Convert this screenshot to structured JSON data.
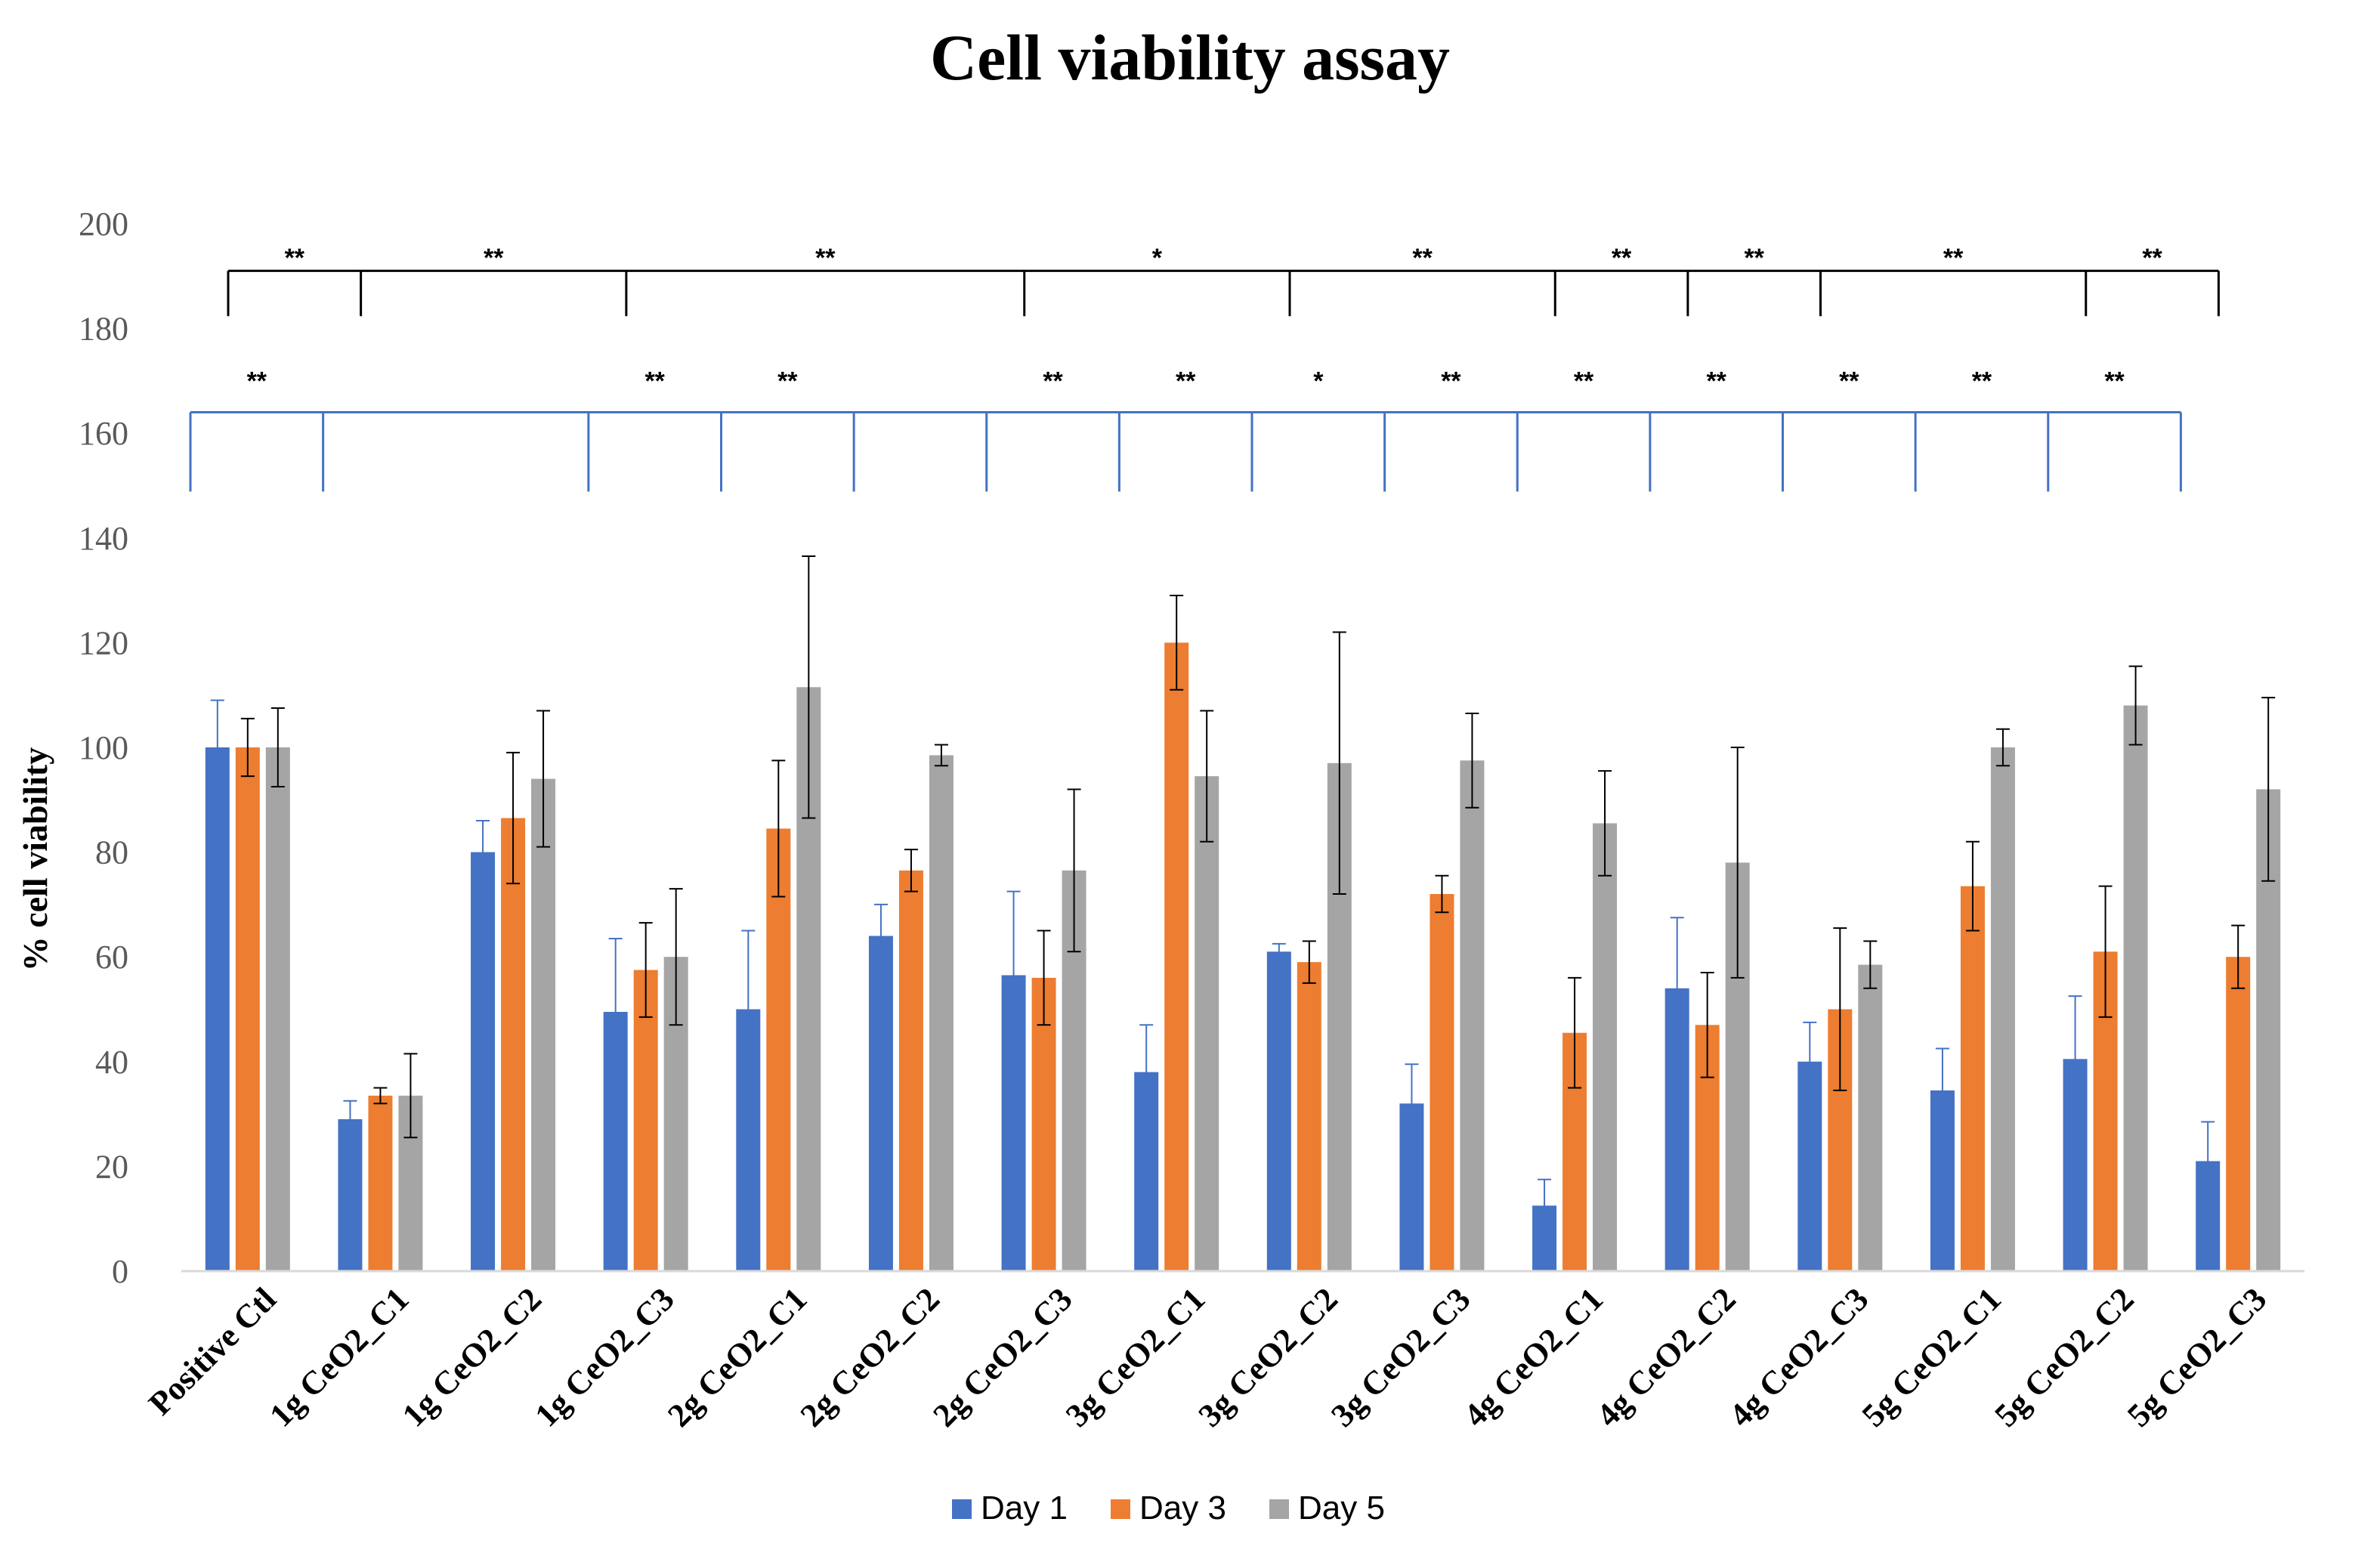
{
  "chart_data": {
    "type": "bar",
    "title": "Cell viability assay",
    "xlabel": "",
    "ylabel": "% cell viability",
    "ylim": [
      0,
      200
    ],
    "yticks": [
      0,
      20,
      40,
      60,
      80,
      100,
      120,
      140,
      160,
      180,
      200
    ],
    "grid": false,
    "legend_position": "bottom",
    "categories": [
      "Positive Ctl",
      "1g CeO2_C1",
      "1g CeO2_C2",
      "1g CeO2_C3",
      "2g CeO2_C1",
      "2g CeO2_C2",
      "2g CeO2_C3",
      "3g CeO2_C1",
      "3g CeO2_C2",
      "3g CeO2_C3",
      "4g CeO2_C1",
      "4g CeO2_C2",
      "4g CeO2_C3",
      "5g CeO2_C1",
      "5g CeO2_C2",
      "5g CeO2_C3"
    ],
    "series": [
      {
        "name": "Day 1",
        "color": "#4472C4",
        "values": [
          100,
          29,
          80,
          49.5,
          50,
          64,
          56.5,
          38,
          61,
          32,
          12.5,
          54,
          40,
          34.5,
          40.5,
          21
        ],
        "errors": [
          9,
          3.5,
          6,
          14,
          15,
          6,
          16,
          9,
          1.5,
          7.5,
          5,
          13.5,
          7.5,
          8,
          12,
          7.5
        ]
      },
      {
        "name": "Day 3",
        "color": "#ED7D31",
        "values": [
          100,
          33.5,
          86.5,
          57.5,
          84.5,
          76.5,
          56,
          120,
          59,
          72,
          45.5,
          47,
          50,
          73.5,
          61,
          60
        ],
        "errors": [
          5.5,
          1.5,
          12.5,
          9,
          13,
          4,
          9,
          9,
          4,
          3.5,
          10.5,
          10,
          15.5,
          8.5,
          12.5,
          6
        ]
      },
      {
        "name": "Day 5",
        "color": "#A5A5A5",
        "values": [
          100,
          33.5,
          94,
          60,
          111.5,
          98.5,
          76.5,
          94.5,
          97,
          97.5,
          85.5,
          78,
          58.5,
          100,
          108,
          92
        ],
        "errors": [
          7.5,
          8,
          13,
          13,
          25,
          2,
          15.5,
          12.5,
          25,
          9,
          10,
          22,
          4.5,
          3.5,
          7.5,
          17.5
        ]
      }
    ],
    "annotations": {
      "day3_group_brackets": {
        "color": "#000000",
        "level": 191,
        "pairs": [
          {
            "label": "**",
            "from": 0.5,
            "to": 1.5
          },
          {
            "label": "**",
            "from": 1.5,
            "to": 3.5
          },
          {
            "label": "**",
            "from": 3.5,
            "to": 6.5
          },
          {
            "label": "*",
            "from": 6.5,
            "to": 8.5
          },
          {
            "label": "**",
            "from": 8.5,
            "to": 10.5
          },
          {
            "label": "**",
            "from": 10.5,
            "to": 11.5
          },
          {
            "label": "**",
            "from": 11.5,
            "to": 12.5
          },
          {
            "label": "**",
            "from": 12.5,
            "to": 14.5
          },
          {
            "label": "**",
            "from": 14.5,
            "to": 15.5
          }
        ]
      },
      "day1_group_brackets": {
        "color": "#4472C4",
        "level": 164,
        "pairs": [
          {
            "label": "**",
            "from": 0,
            "to": 1
          },
          {
            "label": "",
            "from": 1,
            "to": 3
          },
          {
            "label": "**",
            "from": 3,
            "to": 4
          },
          {
            "label": "**",
            "from": 4,
            "to": 5
          },
          {
            "label": "",
            "from": 5,
            "to": 6
          },
          {
            "label": "**",
            "from": 6,
            "to": 7
          },
          {
            "label": "**",
            "from": 7,
            "to": 8
          },
          {
            "label": "*",
            "from": 8,
            "to": 9
          },
          {
            "label": "**",
            "from": 9,
            "to": 10
          },
          {
            "label": "**",
            "from": 10,
            "to": 11
          },
          {
            "label": "**",
            "from": 11,
            "to": 12
          },
          {
            "label": "**",
            "from": 12,
            "to": 13
          },
          {
            "label": "**",
            "from": 13,
            "to": 14
          },
          {
            "label": "**",
            "from": 14,
            "to": 15
          }
        ]
      }
    }
  }
}
